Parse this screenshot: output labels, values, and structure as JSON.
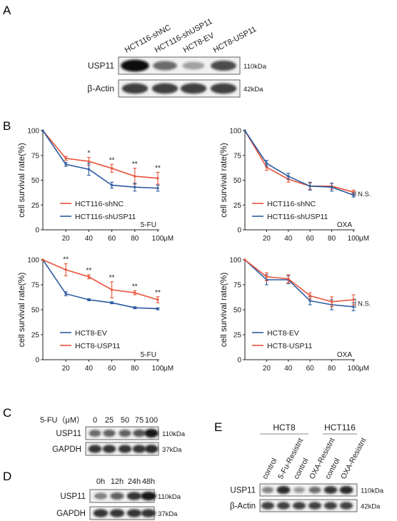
{
  "panel_labels": {
    "a": "A",
    "b": "B",
    "c": "C",
    "d": "D",
    "e": "E"
  },
  "blot_a": {
    "lanes": [
      "HCT116-shNC",
      "HCT116-shUSP11",
      "HCT8-EV",
      "HCT8-USP11"
    ],
    "rows": [
      {
        "protein": "USP11",
        "size": "110kDa",
        "intensities": [
          1.0,
          0.55,
          0.3,
          0.7
        ]
      },
      {
        "protein": "β-Actin",
        "size": "42kDa",
        "intensities": [
          0.75,
          0.75,
          0.75,
          0.75
        ]
      }
    ]
  },
  "blot_c": {
    "treatment": "5-FU（μM）",
    "doses": [
      "0",
      "25",
      "50",
      "75",
      "100"
    ],
    "rows": [
      {
        "protein": "USP11",
        "size": "110kDa",
        "intensities": [
          0.55,
          0.6,
          0.6,
          0.65,
          0.95
        ]
      },
      {
        "protein": "GAPDH",
        "size": "37kDa",
        "intensities": [
          0.8,
          0.8,
          0.8,
          0.8,
          0.85
        ]
      }
    ]
  },
  "blot_d": {
    "times": [
      "0h",
      "12h",
      "24h",
      "48h"
    ],
    "rows": [
      {
        "protein": "USP11",
        "size": "110kDa",
        "intensities": [
          0.45,
          0.6,
          0.8,
          0.95
        ]
      },
      {
        "protein": "GAPDH",
        "size": "37kDa",
        "intensities": [
          0.8,
          0.8,
          0.8,
          0.8
        ]
      }
    ]
  },
  "blot_e": {
    "groups": [
      "HCT8",
      "HCT116"
    ],
    "lanes": [
      "control",
      "5-Fu-Resistnt",
      "control",
      "OXA-Resistnt",
      "control",
      "OXA-Resistnt"
    ],
    "rows": [
      {
        "protein": "USP11",
        "size": "110kDa",
        "intensities": [
          0.45,
          0.85,
          0.35,
          0.55,
          0.8,
          0.85
        ]
      },
      {
        "protein": "β-Actin",
        "size": "42kDa",
        "intensities": [
          0.75,
          0.75,
          0.75,
          0.75,
          0.75,
          0.75
        ]
      }
    ]
  },
  "colors": {
    "red": "#e8543a",
    "blue": "#2c5aa0"
  },
  "chart_data": [
    {
      "type": "line",
      "ylabel": "cell survival rate(%)",
      "drug": "5-FU",
      "xunit": "μM",
      "x": [
        0,
        20,
        40,
        60,
        80,
        100
      ],
      "xticks": [
        "20",
        "40",
        "60",
        "80",
        "100"
      ],
      "ylim": [
        0,
        100
      ],
      "yticks": [
        "0",
        "25",
        "50",
        "75",
        "100"
      ],
      "series": [
        {
          "name": "HCT116-shNC",
          "color": "#e8543a",
          "values": [
            100,
            72,
            69,
            62,
            54,
            52
          ],
          "errors": [
            0,
            2,
            4,
            4,
            8,
            6
          ]
        },
        {
          "name": "HCT116-shUSP11",
          "color": "#2c5aa0",
          "values": [
            100,
            66,
            61,
            45,
            43,
            42
          ],
          "errors": [
            0,
            2,
            6,
            3,
            4,
            3
          ]
        }
      ],
      "significance": [
        "",
        "",
        "*",
        "**",
        "**",
        "**"
      ],
      "note": ""
    },
    {
      "type": "line",
      "ylabel": "cell survival rate(%)",
      "drug": "OXA",
      "xunit": "μM",
      "x": [
        0,
        20,
        40,
        60,
        80,
        100
      ],
      "xticks": [
        "20",
        "40",
        "60",
        "80",
        "100"
      ],
      "ylim": [
        0,
        100
      ],
      "yticks": [
        "0",
        "25",
        "50",
        "75",
        "100"
      ],
      "series": [
        {
          "name": "HCT116-shNC",
          "color": "#e8543a",
          "values": [
            100,
            63,
            51,
            44,
            44,
            38
          ],
          "errors": [
            0,
            3,
            3,
            3,
            3,
            2
          ]
        },
        {
          "name": "HCT116-shUSP11",
          "color": "#2c5aa0",
          "values": [
            100,
            67,
            54,
            44,
            43,
            35
          ],
          "errors": [
            0,
            3,
            3,
            4,
            4,
            2
          ]
        }
      ],
      "significance": [
        "",
        "",
        "",
        "",
        "",
        ""
      ],
      "note": "N.S."
    },
    {
      "type": "line",
      "ylabel": "cell survival rate(%)",
      "drug": "5-FU",
      "xunit": "μM",
      "x": [
        0,
        20,
        40,
        60,
        80,
        100
      ],
      "xticks": [
        "20",
        "40",
        "60",
        "80",
        "100"
      ],
      "ylim": [
        0,
        100
      ],
      "yticks": [
        "0",
        "25",
        "50",
        "75",
        "100"
      ],
      "series": [
        {
          "name": "HCT8-EV",
          "color": "#2c5aa0",
          "values": [
            100,
            66,
            60,
            57,
            52,
            51
          ],
          "errors": [
            0,
            2,
            1,
            1,
            1,
            1
          ]
        },
        {
          "name": "HCT8-USP11",
          "color": "#e8543a",
          "values": [
            100,
            90,
            83,
            70,
            67,
            60
          ],
          "errors": [
            0,
            6,
            2,
            8,
            2,
            3
          ]
        }
      ],
      "significance": [
        "",
        "**",
        "**",
        "**",
        "**",
        "**"
      ],
      "note": ""
    },
    {
      "type": "line",
      "ylabel": "cell survival rate(%)",
      "drug": "OXA",
      "xunit": "μM",
      "x": [
        0,
        20,
        40,
        60,
        80,
        100
      ],
      "xticks": [
        "20",
        "40",
        "60",
        "80",
        "100"
      ],
      "ylim": [
        0,
        100
      ],
      "yticks": [
        "0",
        "25",
        "50",
        "75",
        "100"
      ],
      "series": [
        {
          "name": "HCT8-EV",
          "color": "#2c5aa0",
          "values": [
            100,
            80,
            80,
            59,
            55,
            53
          ],
          "errors": [
            0,
            5,
            4,
            4,
            5,
            4
          ]
        },
        {
          "name": "HCT8-USP11",
          "color": "#e8543a",
          "values": [
            100,
            83,
            81,
            64,
            58,
            60
          ],
          "errors": [
            0,
            4,
            4,
            3,
            5,
            5
          ]
        }
      ],
      "significance": [
        "",
        "",
        "",
        "",
        "",
        ""
      ],
      "note": "N.S."
    }
  ]
}
